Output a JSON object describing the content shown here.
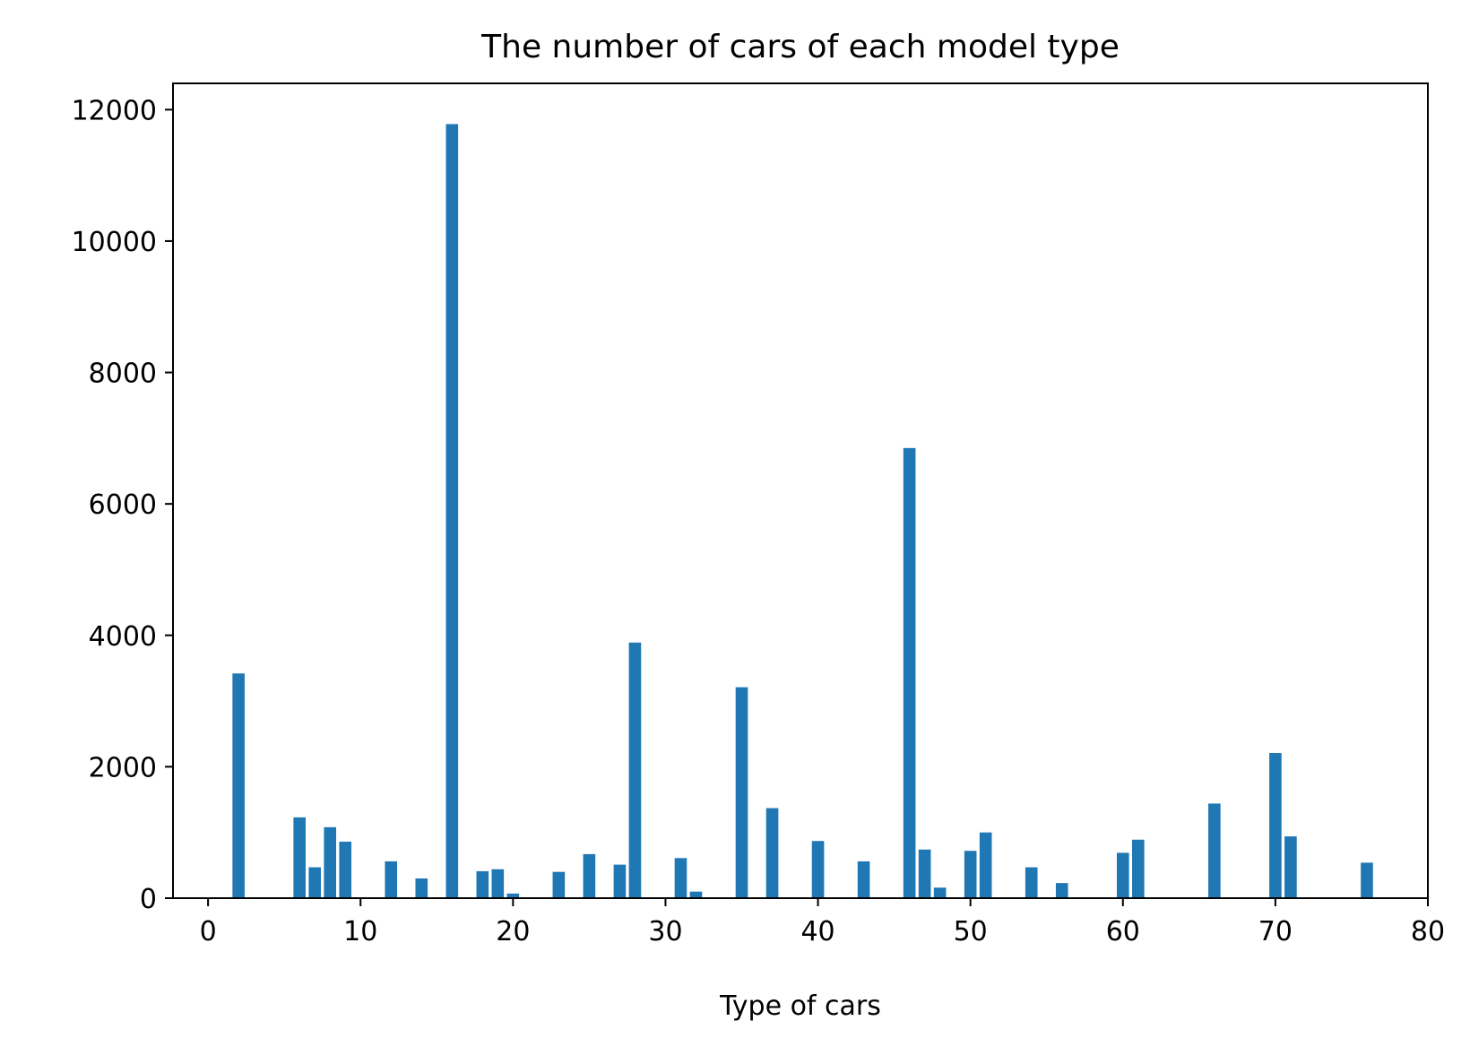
{
  "chart_data": {
    "type": "bar",
    "title": "The number of cars of each model type",
    "xlabel": "Type of cars",
    "ylabel": "",
    "xlim": [
      -2.3,
      80
    ],
    "ylim": [
      0,
      12400
    ],
    "x_ticks": [
      0,
      10,
      20,
      30,
      40,
      50,
      60,
      70,
      80
    ],
    "y_ticks": [
      0,
      2000,
      4000,
      6000,
      8000,
      10000,
      12000
    ],
    "grid": false,
    "bar_color": "#1f77b4",
    "bars": [
      {
        "x": 2,
        "value": 3420
      },
      {
        "x": 6,
        "value": 1230
      },
      {
        "x": 7,
        "value": 470
      },
      {
        "x": 8,
        "value": 1080
      },
      {
        "x": 9,
        "value": 860
      },
      {
        "x": 12,
        "value": 560
      },
      {
        "x": 14,
        "value": 300
      },
      {
        "x": 16,
        "value": 11780
      },
      {
        "x": 18,
        "value": 410
      },
      {
        "x": 19,
        "value": 440
      },
      {
        "x": 20,
        "value": 70
      },
      {
        "x": 23,
        "value": 400
      },
      {
        "x": 25,
        "value": 670
      },
      {
        "x": 27,
        "value": 510
      },
      {
        "x": 28,
        "value": 3890
      },
      {
        "x": 31,
        "value": 610
      },
      {
        "x": 32,
        "value": 100
      },
      {
        "x": 35,
        "value": 3210
      },
      {
        "x": 37,
        "value": 1370
      },
      {
        "x": 40,
        "value": 870
      },
      {
        "x": 43,
        "value": 560
      },
      {
        "x": 46,
        "value": 6850
      },
      {
        "x": 47,
        "value": 740
      },
      {
        "x": 48,
        "value": 160
      },
      {
        "x": 50,
        "value": 720
      },
      {
        "x": 51,
        "value": 1000
      },
      {
        "x": 54,
        "value": 470
      },
      {
        "x": 56,
        "value": 230
      },
      {
        "x": 60,
        "value": 690
      },
      {
        "x": 61,
        "value": 890
      },
      {
        "x": 66,
        "value": 1440
      },
      {
        "x": 70,
        "value": 2210
      },
      {
        "x": 71,
        "value": 940
      },
      {
        "x": 76,
        "value": 540
      }
    ]
  }
}
